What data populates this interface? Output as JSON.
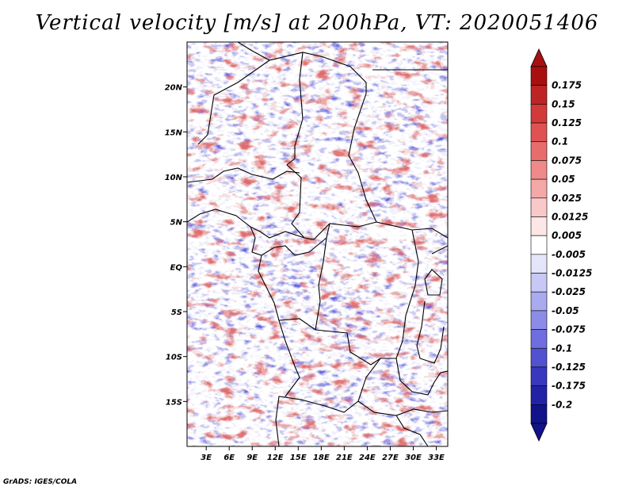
{
  "title": "Vertical velocity [m/s] at 200hPa, VT: 2020051406",
  "credit": "GrADS: IGES/COLA",
  "map": {
    "lat_labels": [
      "20N",
      "15N",
      "10N",
      "5N",
      "EQ",
      "5S",
      "10S",
      "15S"
    ],
    "lat_values": [
      20,
      15,
      10,
      5,
      0,
      -5,
      -10,
      -15
    ],
    "lon_labels": [
      "3E",
      "6E",
      "9E",
      "12E",
      "15E",
      "18E",
      "21E",
      "24E",
      "27E",
      "30E",
      "33E"
    ],
    "lon_values": [
      3,
      6,
      9,
      12,
      15,
      18,
      21,
      24,
      27,
      30,
      33
    ],
    "lon_range": [
      0.5,
      34.5
    ],
    "lat_range": [
      -20,
      25
    ]
  },
  "colorbar": {
    "labels": [
      "0.175",
      "0.15",
      "0.125",
      "0.1",
      "0.075",
      "0.05",
      "0.025",
      "0.0125",
      "0.005",
      "-0.005",
      "-0.0125",
      "-0.025",
      "-0.05",
      "-0.075",
      "-0.1",
      "-0.125",
      "-0.175",
      "-0.2"
    ],
    "colors": [
      "#a81010",
      "#be2424",
      "#d23a3a",
      "#e05252",
      "#e86c6c",
      "#f08a8a",
      "#f5a8a8",
      "#f9c8c8",
      "#fde6e6",
      "#ffffff",
      "#e4e4fb",
      "#c8c8f6",
      "#aaaaf0",
      "#8c8ce8",
      "#6e6ede",
      "#5252d0",
      "#3838be",
      "#2222a6",
      "#12128a"
    ],
    "top_color": "#a81010",
    "bottom_color": "#12128a"
  }
}
